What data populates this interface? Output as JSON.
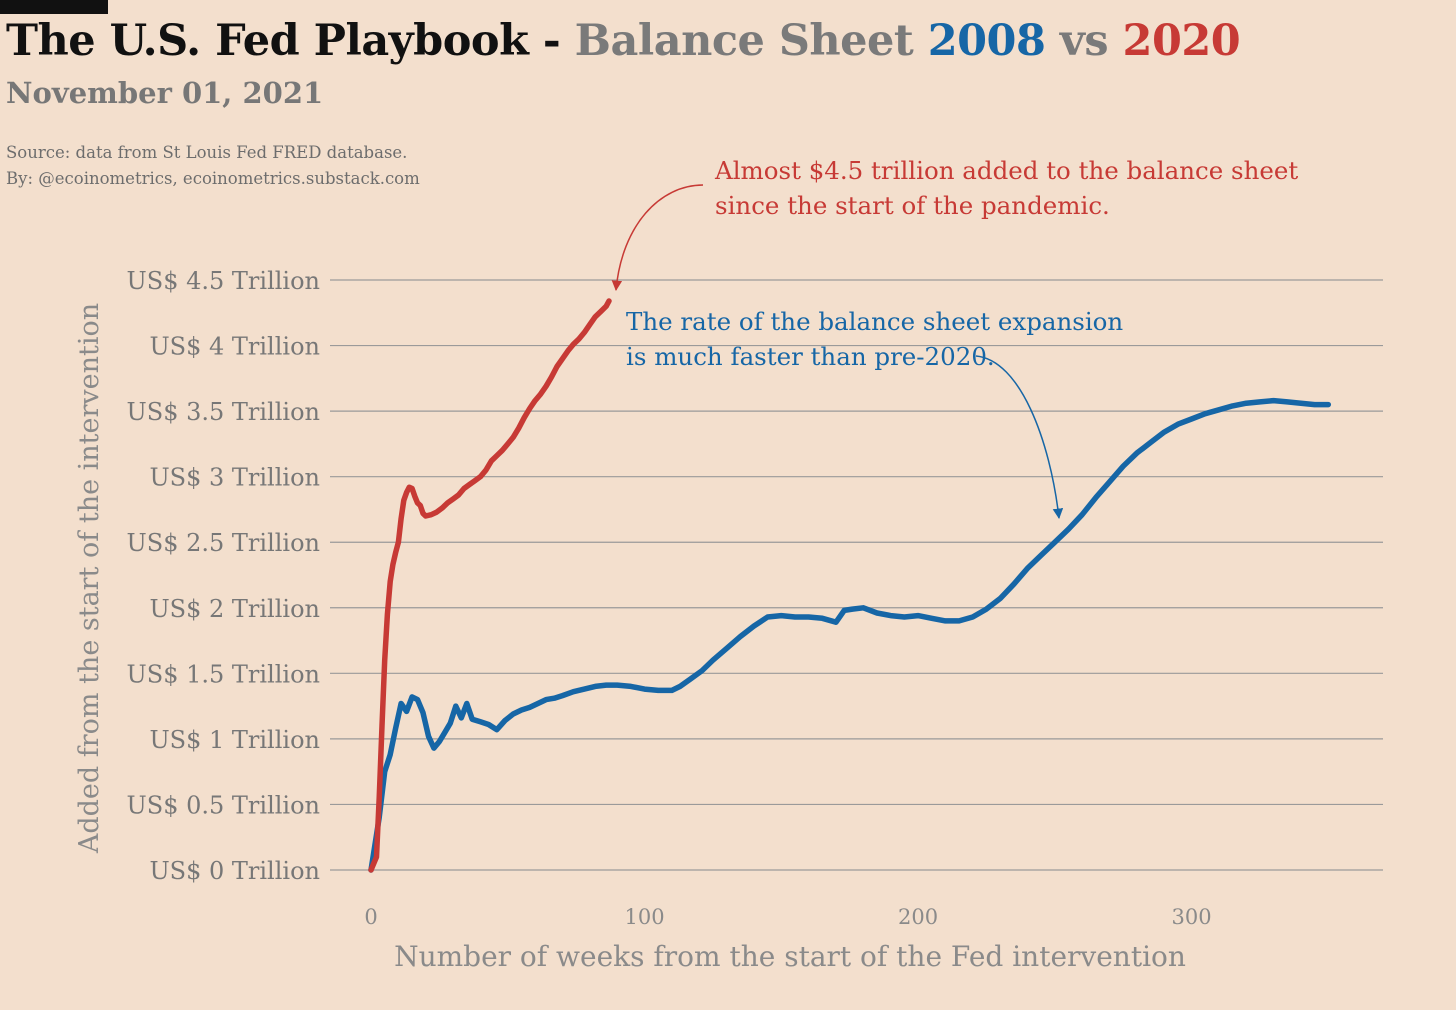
{
  "header": {
    "title_part1": "The U.S. Fed Playbook - ",
    "title_part2": "Balance Sheet ",
    "title_part3": "2008",
    "title_part4": " vs ",
    "title_part5": "2020",
    "date": "November 01, 2021",
    "source_line1": "Source: data from  St Louis Fed FRED database.",
    "source_line2": "By: @ecoinometrics, ecoinometrics.substack.com"
  },
  "colors": {
    "background": "#f3dfcd",
    "title": "#111111",
    "muted": "#777777",
    "series_2008": "#1666a6",
    "series_2020": "#c73a35",
    "grid": "#9a9a9a"
  },
  "annotations": {
    "red_line1": "Almost $4.5 trillion added to the balance sheet",
    "red_line2": "since the start of the pandemic.",
    "blue_line1": "The rate of the balance sheet expansion",
    "blue_line2": "is much faster than pre-2020."
  },
  "chart_data": {
    "type": "line",
    "title": "The U.S. Fed Playbook - Balance Sheet 2008 vs 2020",
    "subtitle": "November 01, 2021",
    "xlabel": "Number of weeks from the start of the Fed intervention",
    "ylabel": "Added from the start of the intervention",
    "xlim": [
      -15,
      370
    ],
    "ylim": [
      0,
      4.5
    ],
    "x_ticks": [
      0,
      100,
      200,
      300
    ],
    "y_ticks": [
      0,
      0.5,
      1,
      1.5,
      2,
      2.5,
      3,
      3.5,
      4,
      4.5
    ],
    "y_tick_labels": [
      "US$ 0 Trillion",
      "US$ 0.5 Trillion",
      "US$ 1 Trillion",
      "US$ 1.5 Trillion",
      "US$ 2 Trillion",
      "US$ 2.5 Trillion",
      "US$ 3 Trillion",
      "US$ 3.5 Trillion",
      "US$ 4 Trillion",
      "US$ 4.5 Trillion"
    ],
    "grid": "horizontal",
    "legend": "none (series identified by title colors)",
    "series": [
      {
        "color": "#1666a6",
        "points": [
          [
            0,
            0
          ],
          [
            3,
            0.4
          ],
          [
            5,
            0.75
          ],
          [
            7,
            0.88
          ],
          [
            9,
            1.08
          ],
          [
            11,
            1.27
          ],
          [
            13,
            1.21
          ],
          [
            15,
            1.32
          ],
          [
            17,
            1.3
          ],
          [
            19,
            1.2
          ],
          [
            21,
            1.02
          ],
          [
            23,
            0.93
          ],
          [
            25,
            0.98
          ],
          [
            27,
            1.05
          ],
          [
            29,
            1.12
          ],
          [
            31,
            1.25
          ],
          [
            33,
            1.16
          ],
          [
            35,
            1.27
          ],
          [
            37,
            1.15
          ],
          [
            40,
            1.13
          ],
          [
            43,
            1.11
          ],
          [
            46,
            1.07
          ],
          [
            49,
            1.14
          ],
          [
            52,
            1.19
          ],
          [
            55,
            1.22
          ],
          [
            58,
            1.24
          ],
          [
            61,
            1.27
          ],
          [
            64,
            1.3
          ],
          [
            67,
            1.31
          ],
          [
            70,
            1.33
          ],
          [
            74,
            1.36
          ],
          [
            78,
            1.38
          ],
          [
            82,
            1.4
          ],
          [
            86,
            1.41
          ],
          [
            90,
            1.41
          ],
          [
            95,
            1.4
          ],
          [
            100,
            1.38
          ],
          [
            105,
            1.37
          ],
          [
            110,
            1.37
          ],
          [
            113,
            1.4
          ],
          [
            117,
            1.46
          ],
          [
            121,
            1.52
          ],
          [
            125,
            1.6
          ],
          [
            130,
            1.69
          ],
          [
            135,
            1.78
          ],
          [
            140,
            1.86
          ],
          [
            145,
            1.93
          ],
          [
            150,
            1.94
          ],
          [
            155,
            1.93
          ],
          [
            160,
            1.93
          ],
          [
            165,
            1.92
          ],
          [
            170,
            1.89
          ],
          [
            173,
            1.98
          ],
          [
            176,
            1.99
          ],
          [
            180,
            2.0
          ],
          [
            185,
            1.96
          ],
          [
            190,
            1.94
          ],
          [
            195,
            1.93
          ],
          [
            200,
            1.94
          ],
          [
            205,
            1.92
          ],
          [
            210,
            1.9
          ],
          [
            215,
            1.9
          ],
          [
            220,
            1.93
          ],
          [
            225,
            1.99
          ],
          [
            230,
            2.07
          ],
          [
            235,
            2.18
          ],
          [
            240,
            2.3
          ],
          [
            245,
            2.4
          ],
          [
            250,
            2.5
          ],
          [
            255,
            2.6
          ],
          [
            260,
            2.71
          ],
          [
            265,
            2.84
          ],
          [
            270,
            2.96
          ],
          [
            275,
            3.08
          ],
          [
            280,
            3.18
          ],
          [
            285,
            3.26
          ],
          [
            290,
            3.34
          ],
          [
            295,
            3.4
          ],
          [
            300,
            3.44
          ],
          [
            305,
            3.48
          ],
          [
            310,
            3.51
          ],
          [
            315,
            3.54
          ],
          [
            320,
            3.56
          ],
          [
            325,
            3.57
          ],
          [
            330,
            3.58
          ],
          [
            335,
            3.57
          ],
          [
            340,
            3.56
          ],
          [
            345,
            3.55
          ],
          [
            350,
            3.55
          ]
        ]
      },
      {
        "color": "#c73a35",
        "points": [
          [
            0,
            0
          ],
          [
            2,
            0.1
          ],
          [
            3,
            0.55
          ],
          [
            4,
            1.1
          ],
          [
            5,
            1.6
          ],
          [
            6,
            1.95
          ],
          [
            7,
            2.2
          ],
          [
            8,
            2.33
          ],
          [
            9,
            2.42
          ],
          [
            10,
            2.5
          ],
          [
            11,
            2.68
          ],
          [
            12,
            2.82
          ],
          [
            13,
            2.88
          ],
          [
            14,
            2.92
          ],
          [
            15,
            2.91
          ],
          [
            16,
            2.85
          ],
          [
            17,
            2.8
          ],
          [
            18,
            2.78
          ],
          [
            19,
            2.72
          ],
          [
            20,
            2.7
          ],
          [
            22,
            2.71
          ],
          [
            24,
            2.73
          ],
          [
            26,
            2.76
          ],
          [
            28,
            2.8
          ],
          [
            30,
            2.83
          ],
          [
            32,
            2.86
          ],
          [
            34,
            2.91
          ],
          [
            36,
            2.94
          ],
          [
            38,
            2.97
          ],
          [
            40,
            3.0
          ],
          [
            42,
            3.05
          ],
          [
            44,
            3.12
          ],
          [
            46,
            3.16
          ],
          [
            48,
            3.2
          ],
          [
            50,
            3.25
          ],
          [
            52,
            3.3
          ],
          [
            54,
            3.37
          ],
          [
            56,
            3.45
          ],
          [
            58,
            3.52
          ],
          [
            60,
            3.58
          ],
          [
            62,
            3.63
          ],
          [
            64,
            3.69
          ],
          [
            66,
            3.76
          ],
          [
            68,
            3.84
          ],
          [
            70,
            3.9
          ],
          [
            72,
            3.96
          ],
          [
            74,
            4.01
          ],
          [
            76,
            4.05
          ],
          [
            78,
            4.1
          ],
          [
            80,
            4.16
          ],
          [
            82,
            4.22
          ],
          [
            84,
            4.26
          ],
          [
            86,
            4.3
          ],
          [
            87,
            4.34
          ]
        ]
      }
    ]
  }
}
